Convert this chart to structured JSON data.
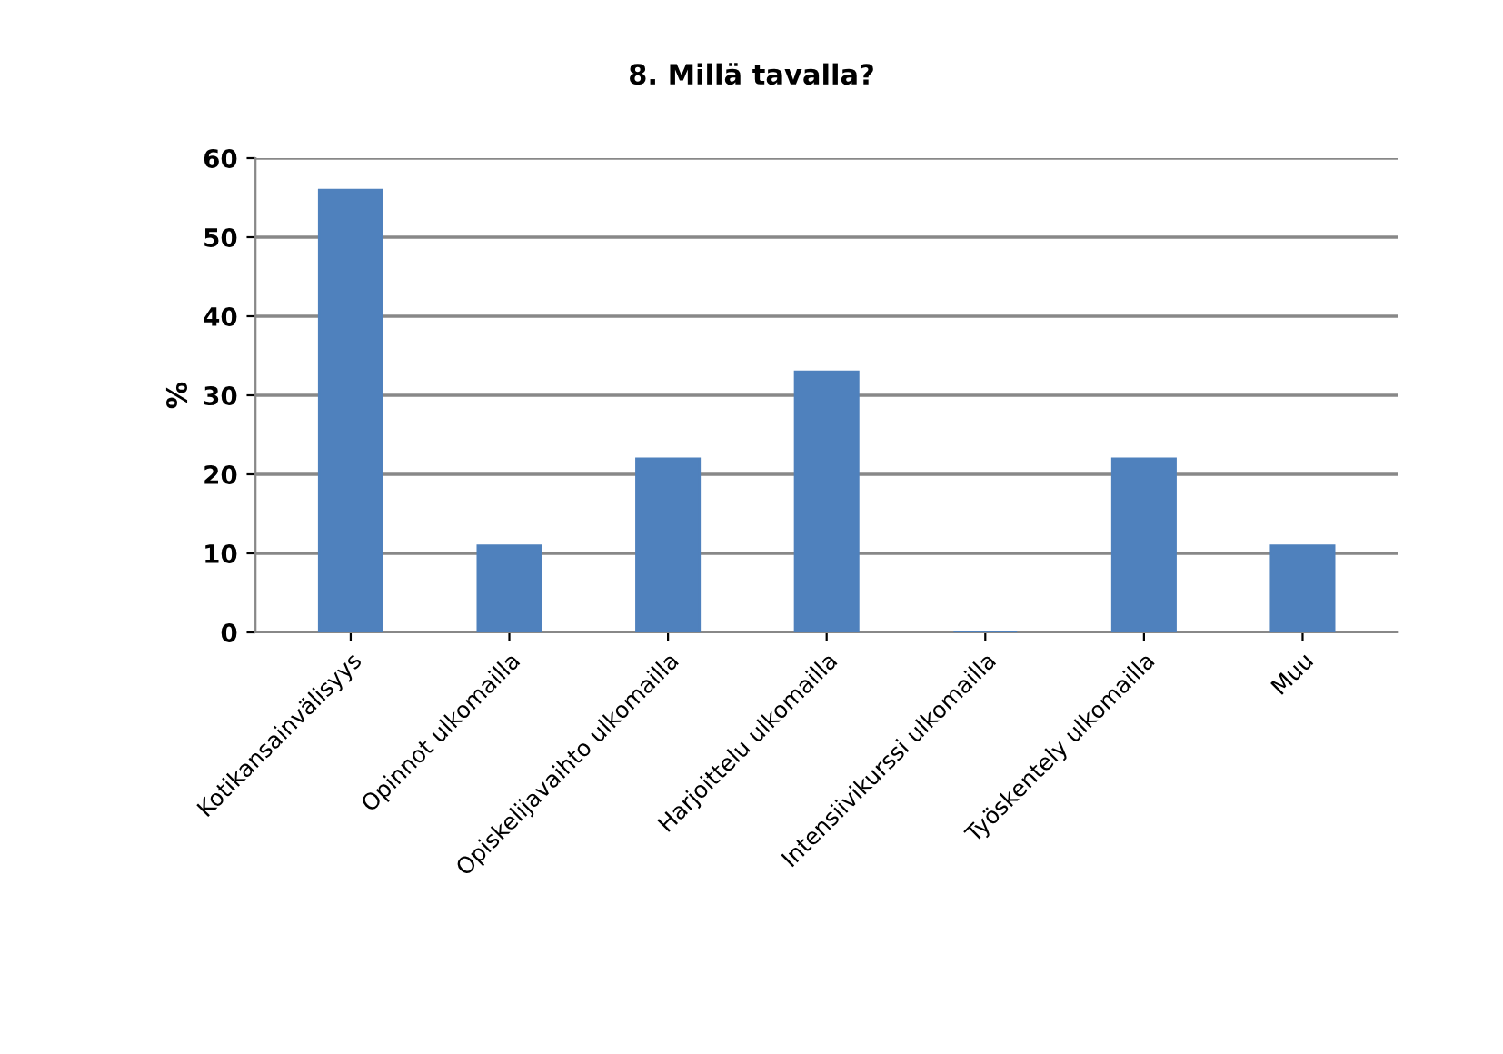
{
  "chart_data": {
    "type": "bar",
    "title": "8. Millä tavalla?",
    "ylabel": "%",
    "categories": [
      "Kotikansainvälisyys",
      "Opinnot ulkomailla",
      "Opiskelijavaihto ulkomailla",
      "Harjoittelu ulkomailla",
      "Intensiivikurssi ulkomailla",
      "Työskentely ulkomailla",
      "Muu"
    ],
    "values": [
      56,
      11,
      22,
      33,
      0,
      22,
      11
    ],
    "color": "#4f81bd",
    "ylim": [
      0,
      60
    ],
    "yticks": [
      0,
      10,
      20,
      30,
      40,
      50,
      60
    ],
    "grid": "y"
  }
}
